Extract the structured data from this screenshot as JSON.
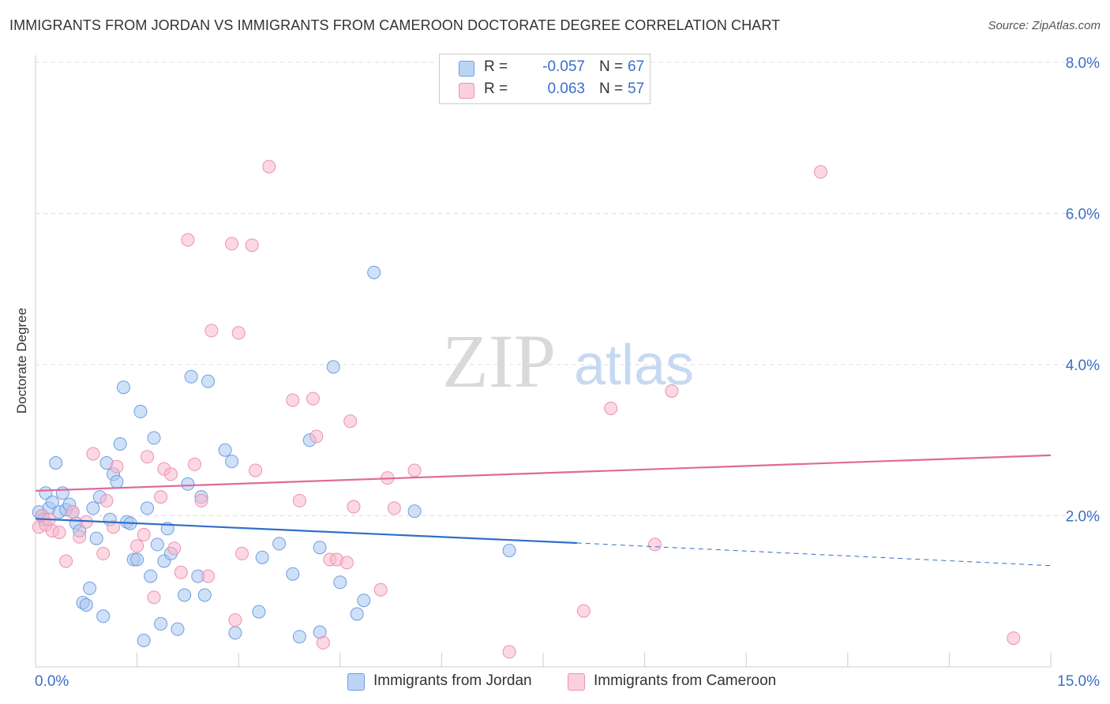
{
  "title": "IMMIGRANTS FROM JORDAN VS IMMIGRANTS FROM CAMEROON DOCTORATE DEGREE CORRELATION CHART",
  "source": "Source: ZipAtlas.com",
  "watermark": {
    "zip": "ZIP",
    "atlas": "atlas"
  },
  "stats": [
    {
      "r_label": "R =",
      "r_value": "-0.057",
      "n_label": "N =",
      "n_value": "67",
      "color": "#a9c7f0"
    },
    {
      "r_label": "R =",
      "r_value": "0.063",
      "n_label": "N =",
      "n_value": "57",
      "color": "#f7b8cc"
    }
  ],
  "legend": [
    {
      "label": "Immigrants from Jordan",
      "color": "#a9c7f0"
    },
    {
      "label": "Immigrants from Cameroon",
      "color": "#f7b8cc"
    }
  ],
  "chart_data": {
    "type": "scatter",
    "title": "IMMIGRANTS FROM JORDAN VS IMMIGRANTS FROM CAMEROON DOCTORATE DEGREE CORRELATION CHART",
    "xlabel": "",
    "ylabel": "Doctorate Degree",
    "xlim": [
      0,
      15
    ],
    "ylim": [
      0,
      8.3
    ],
    "x_tick_labels": [
      {
        "value": 0,
        "label": "0.0%"
      },
      {
        "value": 15,
        "label": "15.0%"
      }
    ],
    "y_tick_labels": [
      {
        "value": 2,
        "label": "2.0%"
      },
      {
        "value": 4,
        "label": "4.0%"
      },
      {
        "value": 6,
        "label": "6.0%"
      },
      {
        "value": 8,
        "label": "8.0%"
      }
    ],
    "grid": true,
    "legend_position": "bottom",
    "series": [
      {
        "name": "Immigrants from Jordan",
        "color": "#6d9ee3",
        "fill": "#a9c7f0",
        "trend": {
          "x": [
            0,
            8
          ],
          "y": [
            1.96,
            1.64
          ],
          "dashed_to": [
            15,
            1.34
          ],
          "color": "#2f6fc8"
        },
        "points": [
          [
            0.05,
            2.05
          ],
          [
            0.1,
            2.0
          ],
          [
            0.12,
            1.95
          ],
          [
            0.15,
            2.3
          ],
          [
            0.2,
            2.1
          ],
          [
            0.25,
            2.18
          ],
          [
            0.3,
            2.7
          ],
          [
            0.35,
            2.05
          ],
          [
            0.4,
            2.3
          ],
          [
            0.45,
            2.08
          ],
          [
            0.5,
            2.15
          ],
          [
            0.55,
            2.05
          ],
          [
            0.6,
            1.9
          ],
          [
            0.65,
            1.8
          ],
          [
            0.7,
            0.85
          ],
          [
            0.75,
            0.82
          ],
          [
            0.8,
            1.04
          ],
          [
            0.85,
            2.1
          ],
          [
            0.9,
            1.7
          ],
          [
            0.95,
            2.25
          ],
          [
            1.0,
            0.67
          ],
          [
            1.05,
            2.7
          ],
          [
            1.1,
            1.95
          ],
          [
            1.15,
            2.55
          ],
          [
            1.2,
            2.45
          ],
          [
            1.25,
            2.95
          ],
          [
            1.3,
            3.7
          ],
          [
            1.35,
            1.92
          ],
          [
            1.4,
            1.9
          ],
          [
            1.45,
            1.42
          ],
          [
            1.5,
            1.42
          ],
          [
            1.55,
            3.38
          ],
          [
            1.6,
            0.35
          ],
          [
            1.65,
            2.1
          ],
          [
            1.7,
            1.2
          ],
          [
            1.75,
            3.03
          ],
          [
            1.8,
            1.62
          ],
          [
            1.85,
            0.57
          ],
          [
            1.9,
            1.4
          ],
          [
            1.95,
            1.83
          ],
          [
            2.0,
            1.5
          ],
          [
            2.1,
            0.5
          ],
          [
            2.2,
            0.95
          ],
          [
            2.25,
            2.42
          ],
          [
            2.3,
            3.84
          ],
          [
            2.4,
            1.2
          ],
          [
            2.45,
            2.25
          ],
          [
            2.5,
            0.95
          ],
          [
            2.55,
            3.78
          ],
          [
            2.8,
            2.87
          ],
          [
            2.9,
            2.72
          ],
          [
            2.95,
            0.45
          ],
          [
            3.3,
            0.73
          ],
          [
            3.35,
            1.45
          ],
          [
            3.6,
            1.63
          ],
          [
            3.8,
            1.23
          ],
          [
            3.9,
            0.4
          ],
          [
            4.05,
            3.0
          ],
          [
            4.2,
            1.58
          ],
          [
            4.2,
            0.46
          ],
          [
            4.4,
            3.97
          ],
          [
            4.5,
            1.12
          ],
          [
            4.75,
            0.7
          ],
          [
            4.85,
            0.88
          ],
          [
            5.0,
            5.22
          ],
          [
            5.6,
            2.06
          ],
          [
            7.0,
            1.54
          ]
        ]
      },
      {
        "name": "Immigrants from Cameroon",
        "color": "#ee91ae",
        "fill": "#f7b8cc",
        "trend": {
          "x": [
            0,
            15
          ],
          "y": [
            2.33,
            2.8
          ],
          "color": "#e0699a"
        },
        "points": [
          [
            0.05,
            1.85
          ],
          [
            0.1,
            2.0
          ],
          [
            0.15,
            1.88
          ],
          [
            0.2,
            1.95
          ],
          [
            0.25,
            1.8
          ],
          [
            0.35,
            1.78
          ],
          [
            0.45,
            1.4
          ],
          [
            0.55,
            2.05
          ],
          [
            0.65,
            1.72
          ],
          [
            0.75,
            1.92
          ],
          [
            0.85,
            2.82
          ],
          [
            1.0,
            1.5
          ],
          [
            1.05,
            2.2
          ],
          [
            1.15,
            1.85
          ],
          [
            1.2,
            2.65
          ],
          [
            1.5,
            1.6
          ],
          [
            1.6,
            1.75
          ],
          [
            1.65,
            2.78
          ],
          [
            1.75,
            0.92
          ],
          [
            1.85,
            2.25
          ],
          [
            1.9,
            2.62
          ],
          [
            2.0,
            2.55
          ],
          [
            2.05,
            1.57
          ],
          [
            2.15,
            1.25
          ],
          [
            2.25,
            5.65
          ],
          [
            2.35,
            2.68
          ],
          [
            2.45,
            2.2
          ],
          [
            2.55,
            1.2
          ],
          [
            2.6,
            4.45
          ],
          [
            2.9,
            5.6
          ],
          [
            2.95,
            0.62
          ],
          [
            3.0,
            4.42
          ],
          [
            3.05,
            1.5
          ],
          [
            3.2,
            5.58
          ],
          [
            3.25,
            2.6
          ],
          [
            3.45,
            6.62
          ],
          [
            3.8,
            3.53
          ],
          [
            3.9,
            2.2
          ],
          [
            4.1,
            3.55
          ],
          [
            4.15,
            3.05
          ],
          [
            4.25,
            0.32
          ],
          [
            4.35,
            1.42
          ],
          [
            4.45,
            1.42
          ],
          [
            4.6,
            1.38
          ],
          [
            4.65,
            3.25
          ],
          [
            4.7,
            2.12
          ],
          [
            5.1,
            1.02
          ],
          [
            5.2,
            2.5
          ],
          [
            5.3,
            2.1
          ],
          [
            5.6,
            2.6
          ],
          [
            7.0,
            0.2
          ],
          [
            8.1,
            0.74
          ],
          [
            8.5,
            3.42
          ],
          [
            9.15,
            1.62
          ],
          [
            9.4,
            3.65
          ],
          [
            11.6,
            6.55
          ],
          [
            14.45,
            0.38
          ]
        ]
      }
    ]
  }
}
